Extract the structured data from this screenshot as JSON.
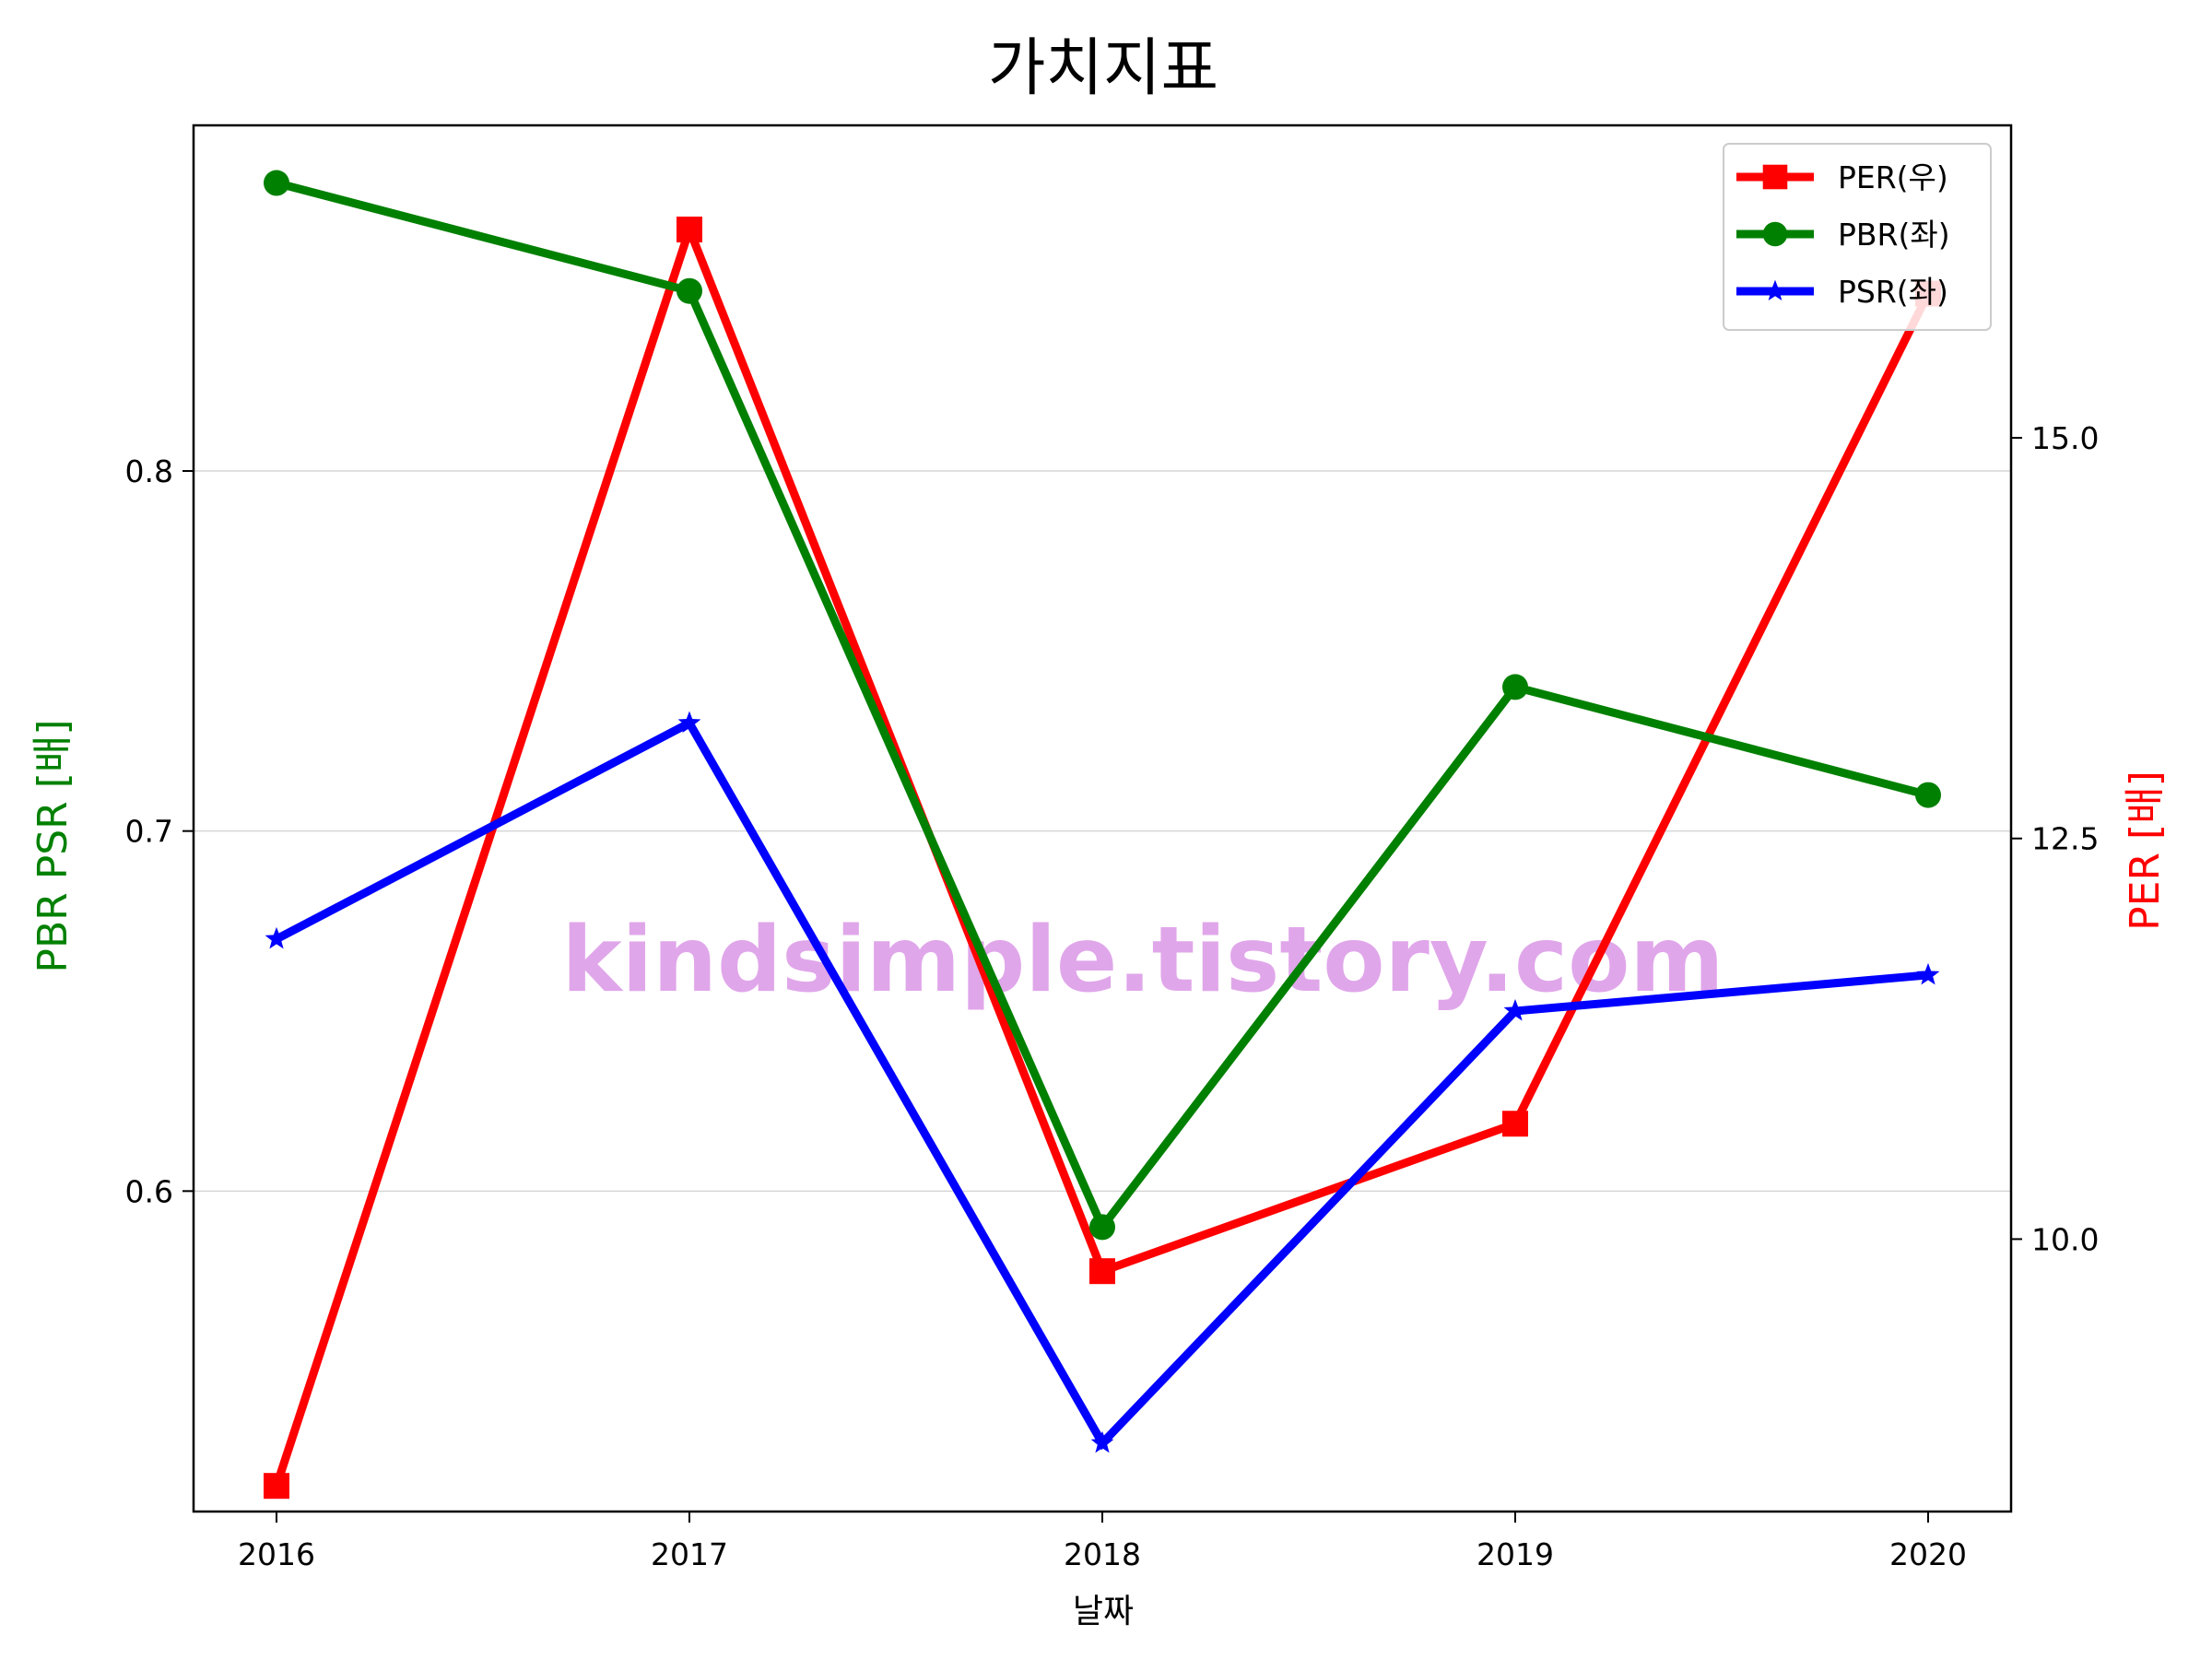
{
  "chart_data": {
    "type": "line",
    "title": "가치지표",
    "xlabel": "날짜",
    "ylabel_left": "PBR PSR [배]",
    "ylabel_right": "PER [배]",
    "categories": [
      "2016",
      "2017",
      "2018",
      "2019",
      "2020"
    ],
    "ylim_left": [
      0.511,
      0.896
    ],
    "ylim_right": [
      8.3,
      16.95
    ],
    "yticks_left": [
      0.6,
      0.7,
      0.8
    ],
    "ytick_labels_left": [
      "0.6",
      "0.7",
      "0.8"
    ],
    "yticks_right": [
      10.0,
      12.5,
      15.0
    ],
    "ytick_labels_right": [
      "10.0",
      "12.5",
      "15.0"
    ],
    "grid": "horizontal (left axis)",
    "legend_position": "top-right",
    "watermark": "kindsimple.tistory.com",
    "colors": {
      "PER": "#ff0000",
      "PBR": "#008000",
      "PSR": "#0000ff",
      "ylabel_left": "#008000",
      "ylabel_right": "#ff0000",
      "watermark": "#e0a6ea"
    },
    "series": [
      {
        "name": "PER(우)",
        "axis": "right",
        "marker": "square",
        "color": "#ff0000",
        "values": [
          8.46,
          16.3,
          9.8,
          10.72,
          15.9
        ]
      },
      {
        "name": "PBR(좌)",
        "axis": "left",
        "marker": "circle",
        "color": "#008000",
        "values": [
          0.88,
          0.85,
          0.59,
          0.74,
          0.71
        ]
      },
      {
        "name": "PSR(좌)",
        "axis": "left",
        "marker": "star",
        "color": "#0000ff",
        "values": [
          0.67,
          0.73,
          0.53,
          0.65,
          0.66
        ]
      }
    ]
  }
}
